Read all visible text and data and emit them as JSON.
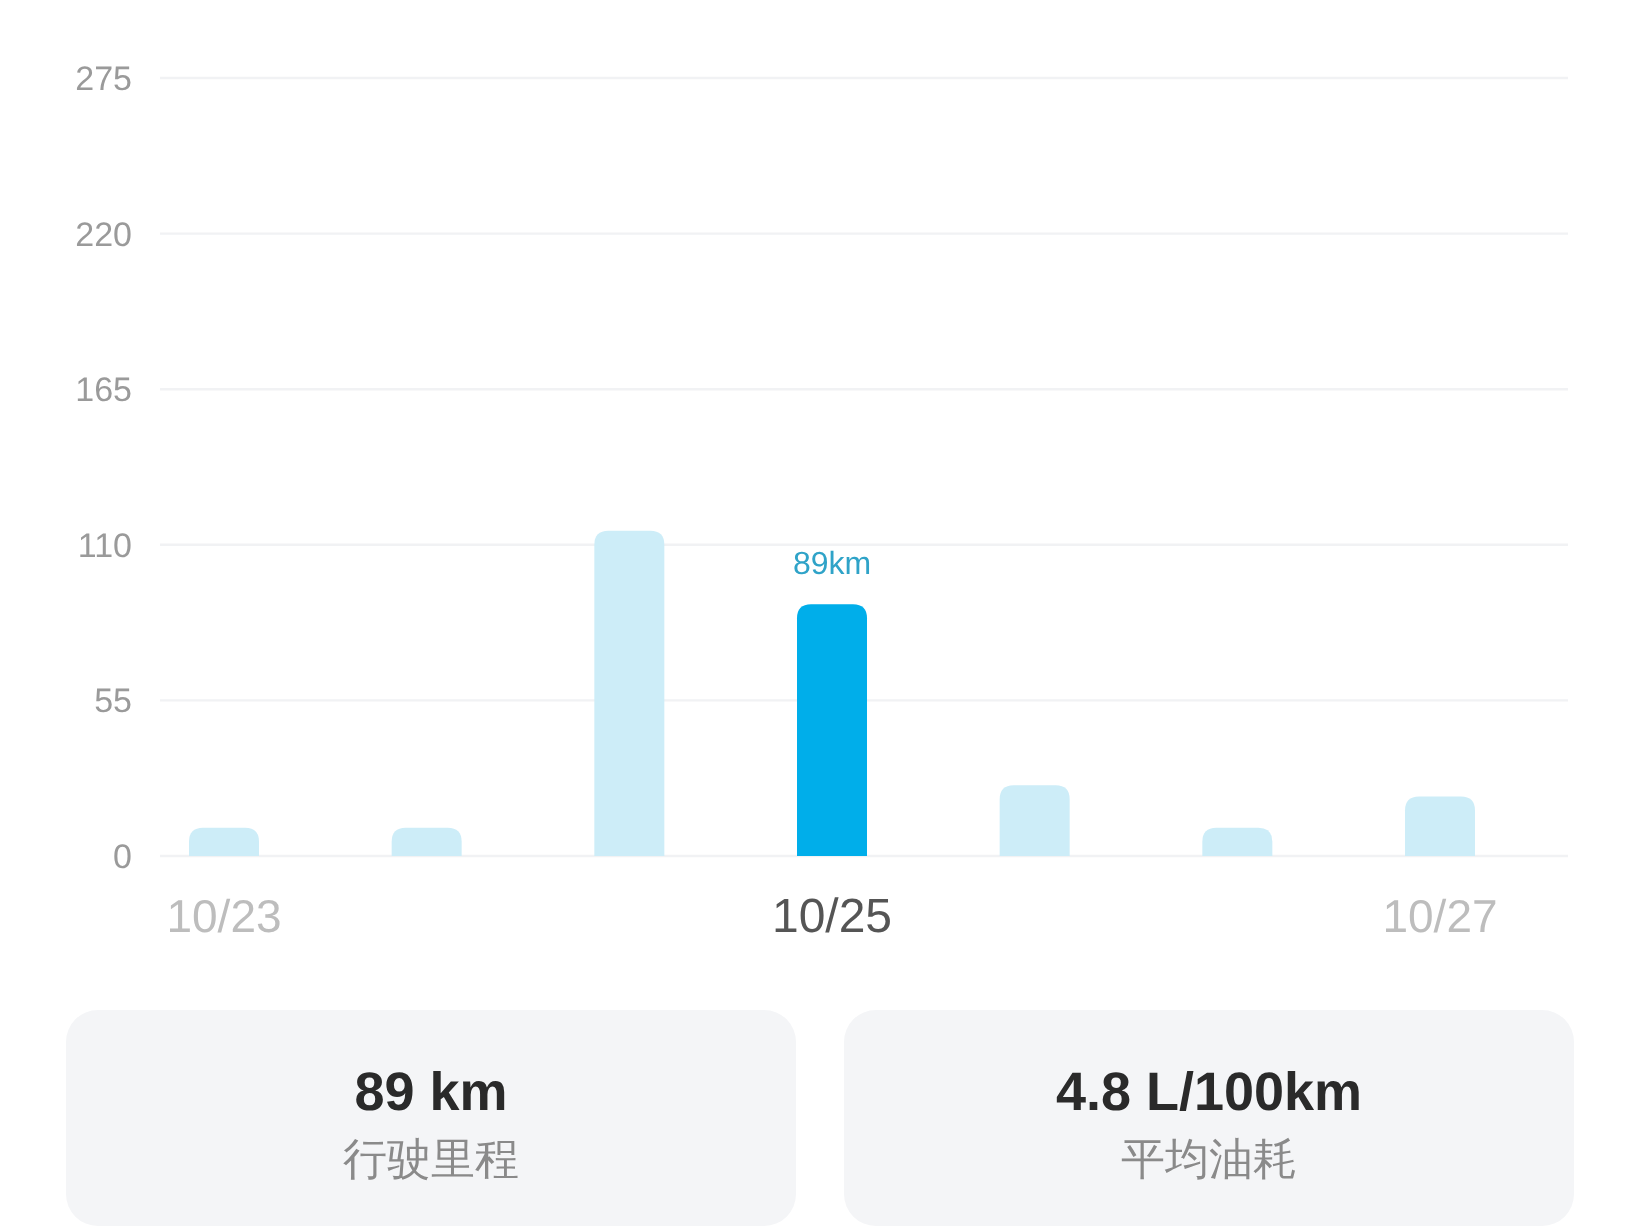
{
  "chart_data": [
    {
      "type": "bar",
      "categories": [
        "10/23",
        null,
        null,
        "10/25",
        null,
        null,
        "10/27"
      ],
      "values": [
        10,
        10,
        115,
        89,
        25,
        10,
        21
      ],
      "colors": [
        "#cdedf8",
        "#cdedf8",
        "#cdedf8",
        "#00aeea",
        "#cdedf8",
        "#cdedf8",
        "#cdedf8"
      ],
      "value_labels": [
        null,
        null,
        null,
        "89km",
        null,
        null,
        null
      ],
      "ylim": [
        0,
        275
      ],
      "yticks": [
        0,
        55,
        110,
        165,
        220,
        275
      ],
      "grid": "y"
    },
    {
      "type": "other",
      "annotations": [
        "89 km",
        "行驶里程"
      ]
    },
    {
      "type": "other",
      "annotations": [
        "4.8 L/100km",
        "平均油耗"
      ]
    }
  ]
}
